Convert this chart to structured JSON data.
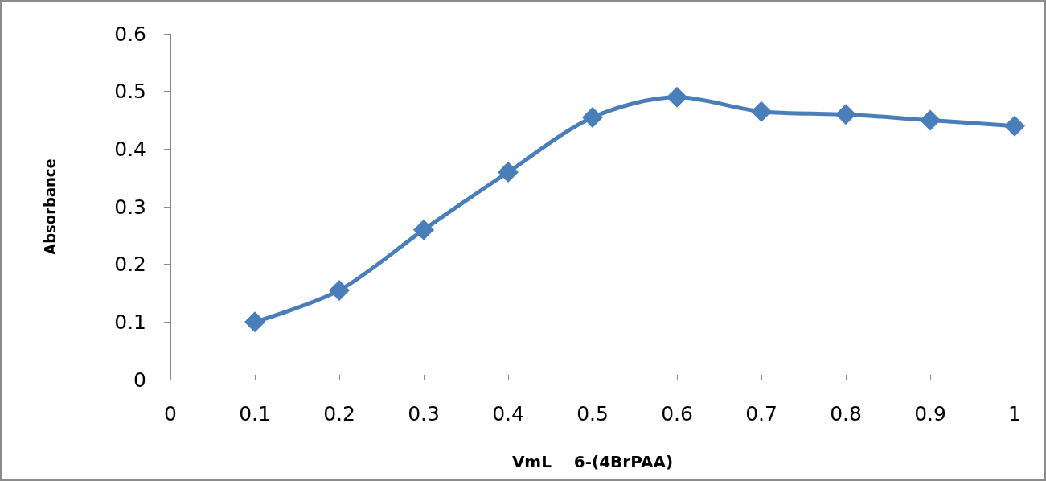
{
  "chart_data": {
    "type": "line",
    "xlabel": "VmL    6-(4BrPAA)",
    "ylabel": "Absorbance",
    "x": [
      0.1,
      0.2,
      0.3,
      0.4,
      0.5,
      0.6,
      0.7,
      0.8,
      0.9,
      1
    ],
    "series": [
      {
        "color": "#4a7ebb",
        "values": [
          0.1,
          0.155,
          0.26,
          0.36,
          0.455,
          0.49,
          0.465,
          0.46,
          0.45,
          0.44
        ]
      }
    ],
    "xlim": [
      0,
      1
    ],
    "xticks": [
      0,
      0.1,
      0.2,
      0.3,
      0.4,
      0.5,
      0.6,
      0.7,
      0.8,
      0.9,
      1
    ],
    "ylim": [
      0,
      0.6
    ],
    "yticks": [
      0,
      0.1,
      0.2,
      0.3,
      0.4,
      0.5,
      0.6
    ],
    "grid": false,
    "marker": "diamond",
    "line_style": "solid"
  }
}
